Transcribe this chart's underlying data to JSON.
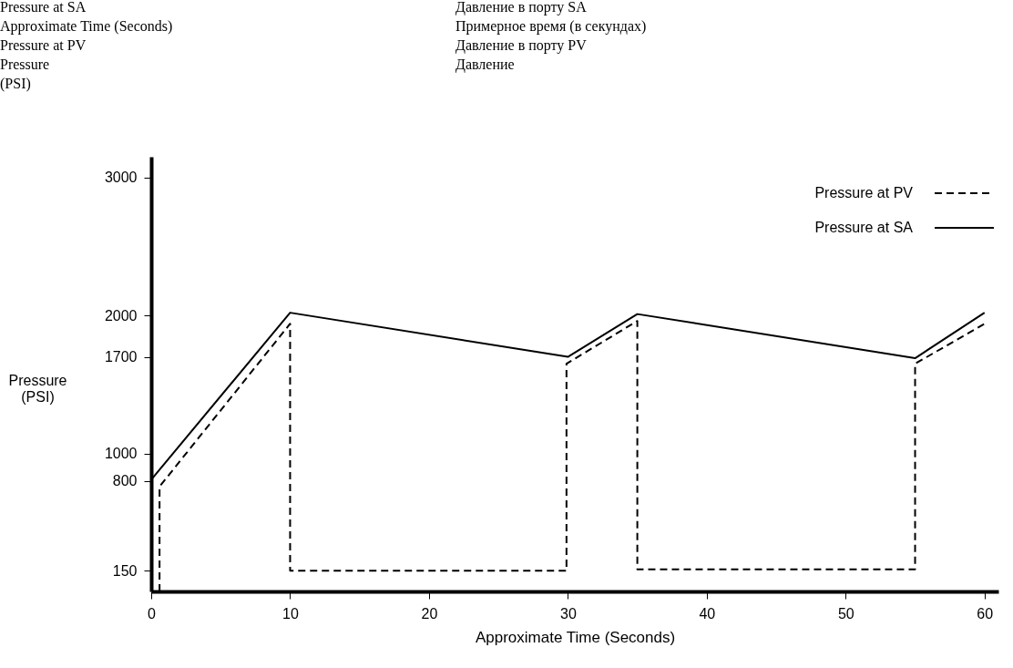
{
  "chart_data": {
    "type": "line",
    "xlabel": "Approximate Time (Seconds)",
    "ylabel": "Pressure\n(PSI)",
    "annotations": [
      "Pressure at SA",
      "Давление в порту SA",
      "Approximate Time (Seconds)",
      "Примерное время (в секундах)",
      "Pressure at PV",
      "Давление в порту PV",
      "Pressure\n(PSI)",
      "Давление"
    ],
    "series": [
      {
        "name": "Pressure at PV",
        "color": "#000000",
        "line_style": "dashed",
        "x": [
          0.6,
          0.6,
          10,
          10,
          29.9,
          29.9,
          35,
          35,
          55,
          55,
          60
        ],
        "values": [
          0,
          760,
          1940,
          150,
          150,
          1650,
          1960,
          160,
          160,
          1650,
          1940
        ]
      },
      {
        "name": "Pressure at SA",
        "color": "#000000",
        "line_style": "solid",
        "x": [
          0,
          10,
          30,
          35,
          55,
          60
        ],
        "values": [
          810,
          2020,
          1700,
          2010,
          1690,
          2020
        ]
      }
    ],
    "xlim": [
      0,
      61
    ],
    "xticks": [
      0,
      10,
      20,
      30,
      40,
      50,
      60
    ],
    "ylim": [
      0,
      3150
    ],
    "yticks": [
      150,
      800,
      1000,
      1700,
      2000,
      3000
    ],
    "grid": false,
    "legend": "top right"
  }
}
